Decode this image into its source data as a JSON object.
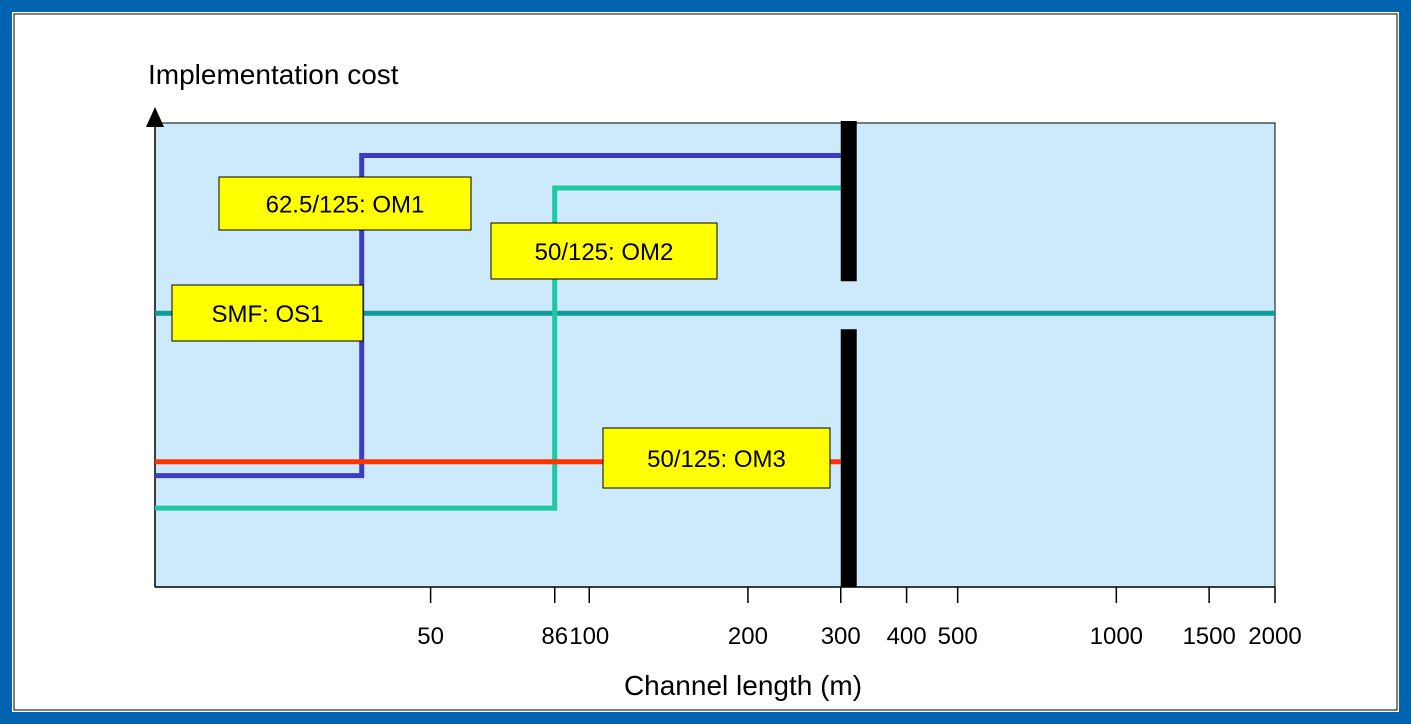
{
  "chart_data": {
    "type": "line",
    "title": "",
    "ylabel": "Implementation cost",
    "xlabel": "Channel length (m)",
    "x_scale": "log",
    "xlim": [
      15,
      2000
    ],
    "ylim": [
      0,
      100
    ],
    "x_ticks": [
      50,
      86,
      100,
      200,
      300,
      400,
      500,
      1000,
      1500,
      2000
    ],
    "x_tick_labels": [
      "50",
      "86",
      "100",
      "200",
      "300",
      "400",
      "500",
      "1000",
      "1500",
      "2000"
    ],
    "distance_limit_m": 300,
    "series": [
      {
        "name": "62.5/125: OM1",
        "color": "#3b3bc4",
        "points": [
          [
            15,
            24
          ],
          [
            37,
            24
          ],
          [
            37,
            93
          ],
          [
            300,
            93
          ]
        ]
      },
      {
        "name": "50/125: OM2",
        "color": "#1ec8a0",
        "points": [
          [
            15,
            17
          ],
          [
            86,
            17
          ],
          [
            86,
            86
          ],
          [
            300,
            86
          ]
        ]
      },
      {
        "name": "SMF: OS1",
        "color": "#0d9b9b",
        "points": [
          [
            15,
            59
          ],
          [
            2000,
            59
          ]
        ]
      },
      {
        "name": "50/125: OM3",
        "color": "#ff3300",
        "points": [
          [
            15,
            27
          ],
          [
            300,
            27
          ]
        ]
      }
    ],
    "colors": {
      "frame": "#0063b0",
      "plot_background": "#cdeafc",
      "label_fill": "#ffff00",
      "limit_bar": "#000000"
    }
  }
}
